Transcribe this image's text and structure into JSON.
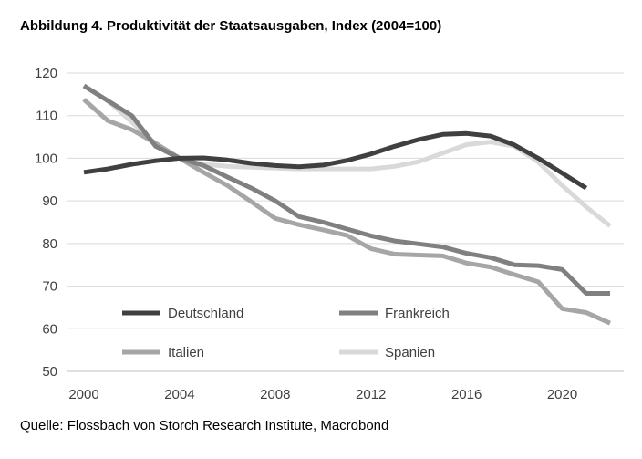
{
  "title": "Abbildung 4. Produktivität der Staatsausgaben, Index (2004=100)",
  "source": "Quelle: Flossbach von Storch Research Institute, Macrobond",
  "chart_data": {
    "type": "line",
    "title": "Abbildung 4. Produktivität der Staatsausgaben, Index (2004=100)",
    "xlabel": "",
    "ylabel": "",
    "xlim": [
      2000,
      2023
    ],
    "ylim": [
      50,
      120
    ],
    "xticks": [
      2000,
      2004,
      2008,
      2012,
      2016,
      2020
    ],
    "yticks": [
      50,
      60,
      70,
      80,
      90,
      100,
      110,
      120
    ],
    "grid": "horizontal",
    "legend": "bottom-inside",
    "series": [
      {
        "name": "Deutschland",
        "color": "#404040",
        "x": [
          2000,
          2001,
          2002,
          2003,
          2004,
          2005,
          2006,
          2007,
          2008,
          2009,
          2010,
          2011,
          2012,
          2013,
          2014,
          2015,
          2016,
          2017,
          2018,
          2019,
          2020,
          2021
        ],
        "values": [
          96.7,
          97.5,
          98.6,
          99.4,
          100,
          100.1,
          99.6,
          98.8,
          98.3,
          98.0,
          98.4,
          99.5,
          101.0,
          102.8,
          104.4,
          105.6,
          105.8,
          105.2,
          103.1,
          100,
          96.5,
          93.0
        ]
      },
      {
        "name": "Frankreich",
        "color": "#808080",
        "x": [
          2000,
          2001,
          2002,
          2003,
          2004,
          2005,
          2006,
          2007,
          2008,
          2009,
          2010,
          2011,
          2012,
          2013,
          2014,
          2015,
          2016,
          2017,
          2018,
          2019,
          2020,
          2021,
          2022
        ],
        "values": [
          117,
          113.5,
          110,
          102.8,
          100,
          98.3,
          95.6,
          93.0,
          90.0,
          86.3,
          85.0,
          83.4,
          81.8,
          80.6,
          79.9,
          79.2,
          77.7,
          76.7,
          75.0,
          74.8,
          73.9,
          68.3,
          68.3
        ]
      },
      {
        "name": "Italien",
        "color": "#a6a6a6",
        "x": [
          2000,
          2001,
          2002,
          2003,
          2004,
          2005,
          2006,
          2007,
          2008,
          2009,
          2010,
          2011,
          2012,
          2013,
          2014,
          2015,
          2016,
          2017,
          2018,
          2019,
          2020,
          2021,
          2022
        ],
        "values": [
          113.8,
          108.8,
          106.7,
          103.5,
          100,
          96.7,
          93.6,
          89.8,
          85.9,
          84.4,
          83.2,
          81.9,
          78.8,
          77.5,
          77.3,
          77.1,
          75.4,
          74.5,
          72.7,
          71.0,
          64.7,
          63.8,
          61.3
        ]
      },
      {
        "name": "Spanien",
        "color": "#d9d9d9",
        "x": [
          2000,
          2001,
          2002,
          2003,
          2004,
          2005,
          2006,
          2007,
          2008,
          2009,
          2010,
          2011,
          2012,
          2013,
          2014,
          2015,
          2016,
          2017,
          2018,
          2019,
          2020,
          2021,
          2022
        ],
        "values": [
          117,
          113.5,
          108.5,
          103.4,
          100,
          98.6,
          98.1,
          97.9,
          97.7,
          97.5,
          97.5,
          97.5,
          97.5,
          98.1,
          99.2,
          101.2,
          103.2,
          103.8,
          102.8,
          99.1,
          93.6,
          88.6,
          84.1
        ]
      }
    ]
  }
}
